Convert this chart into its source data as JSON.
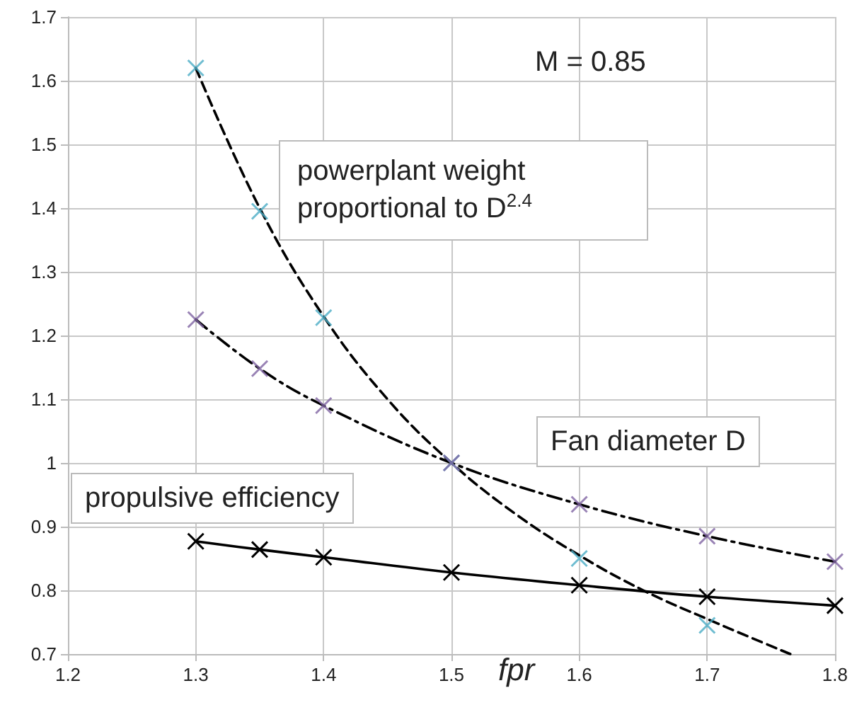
{
  "chart_data": {
    "type": "line",
    "xlabel": "fpr",
    "annotations": [
      "M = 0.85"
    ],
    "xlim": [
      1.2,
      1.8
    ],
    "xticks": [
      1.2,
      1.3,
      1.4,
      1.5,
      1.6,
      1.7,
      1.8
    ],
    "ylim": [
      0.7,
      1.7
    ],
    "yticks": [
      0.7,
      0.8,
      0.9,
      1,
      1.1,
      1.2,
      1.3,
      1.4,
      1.5,
      1.6,
      1.7
    ],
    "grid": true,
    "legend": false,
    "x": [
      1.3,
      1.35,
      1.4,
      1.5,
      1.6,
      1.7,
      1.8
    ],
    "series": [
      {
        "color": "#000000",
        "marker": "none",
        "line_style": "dashed",
        "x": [
          1.3,
          1.35,
          1.4,
          1.45,
          1.5,
          1.55,
          1.6,
          1.65,
          1.7,
          1.765
        ],
        "values": [
          1.62,
          1.4,
          1.23,
          1.1,
          1.0,
          0.92,
          0.855,
          0.8,
          0.755,
          0.7
        ]
      },
      {
        "name": "powerplant weight proportional to D$^{2.4}$",
        "type": "scatter",
        "color": "#4bacc6",
        "marker": "cross",
        "x": [
          1.3,
          1.35,
          1.4,
          1.5,
          1.6,
          1.7
        ],
        "values": [
          1.62,
          1.395,
          1.228,
          1.0,
          0.85,
          0.745
        ]
      },
      {
        "color": "#000000",
        "marker": "none",
        "line_style": "dashdot",
        "values": [
          1.225,
          1.148,
          1.09,
          1.0,
          0.935,
          0.885,
          0.845
        ]
      },
      {
        "name": "Fan diameter D",
        "type": "scatter",
        "color": "#8064a2",
        "marker": "cross",
        "values": [
          1.225,
          1.148,
          1.09,
          1.0,
          0.935,
          0.885,
          0.845
        ]
      },
      {
        "name": "propulsive efficiency",
        "color": "#000000",
        "marker": "cross",
        "line_style": "solid",
        "values": [
          0.877,
          0.864,
          0.852,
          0.828,
          0.808,
          0.79,
          0.776
        ]
      }
    ]
  }
}
